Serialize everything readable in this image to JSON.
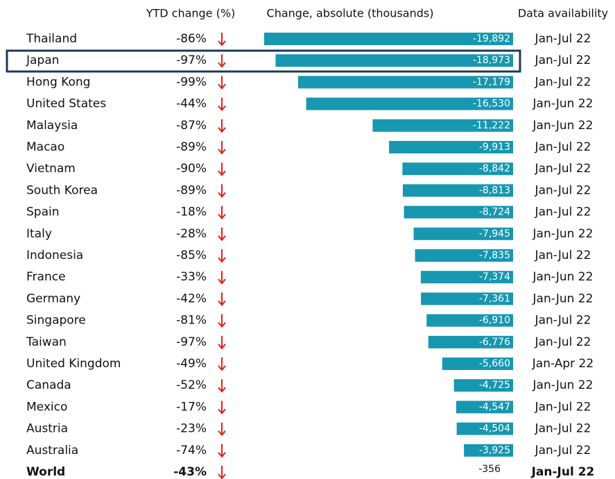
{
  "chart_data": {
    "type": "bar",
    "column_headers": [
      "YTD change (%)",
      "Change, absolute (thousands)",
      "Data availability"
    ],
    "categories": [
      "Thailand",
      "Japan",
      "Hong Kong",
      "United States",
      "Malaysia",
      "Macao",
      "Vietnam",
      "South Korea",
      "Spain",
      "Italy",
      "Indonesia",
      "France",
      "Germany",
      "Singapore",
      "Taiwan",
      "United Kingdom",
      "Canada",
      "Mexico",
      "Austria",
      "Australia",
      "World"
    ],
    "ytd_change": [
      "-86%",
      "-97%",
      "-99%",
      "-44%",
      "-87%",
      "-89%",
      "-90%",
      "-89%",
      "-18%",
      "-28%",
      "-85%",
      "-33%",
      "-42%",
      "-81%",
      "-97%",
      "-49%",
      "-52%",
      "-17%",
      "-23%",
      "-74%",
      "-43%"
    ],
    "values": [
      -19892,
      -18973,
      -17179,
      -16530,
      -11222,
      -9913,
      -8842,
      -8813,
      -8724,
      -7945,
      -7835,
      -7374,
      -7361,
      -6910,
      -6776,
      -5660,
      -4725,
      -4547,
      -4504,
      -3925,
      -356
    ],
    "value_labels": [
      "-19,892",
      "-18,973",
      "-17,179",
      "-16,530",
      "-11,222",
      "-9,913",
      "-8,842",
      "-8,813",
      "-8,724",
      "-7,945",
      "-7,835",
      "-7,374",
      "-7,361",
      "-6,910",
      "-6,776",
      "-5,660",
      "-4,725",
      "-4,547",
      "-4,504",
      "-3,925",
      "-356"
    ],
    "availability": [
      "Jan-Jul 22",
      "Jan-Jul 22",
      "Jan-Jul 22",
      "Jan-Jun 22",
      "Jan-Jun 22",
      "Jan-Jul 22",
      "Jan-Jul 22",
      "Jan-Jul 22",
      "Jan-Jul 22",
      "Jan-Jun 22",
      "Jan-Jul 22",
      "Jan-Jun 22",
      "Jan-Jun 22",
      "Jan-Jul 22",
      "Jan-Jul 22",
      "Jan-Apr 22",
      "Jan-Jun 22",
      "Jan-Jul 22",
      "Jan-Jul 22",
      "Jan-Jul 22",
      "Jan-Jul 22"
    ],
    "xlim": [
      -20000,
      0
    ],
    "color": "#1797b0"
  }
}
